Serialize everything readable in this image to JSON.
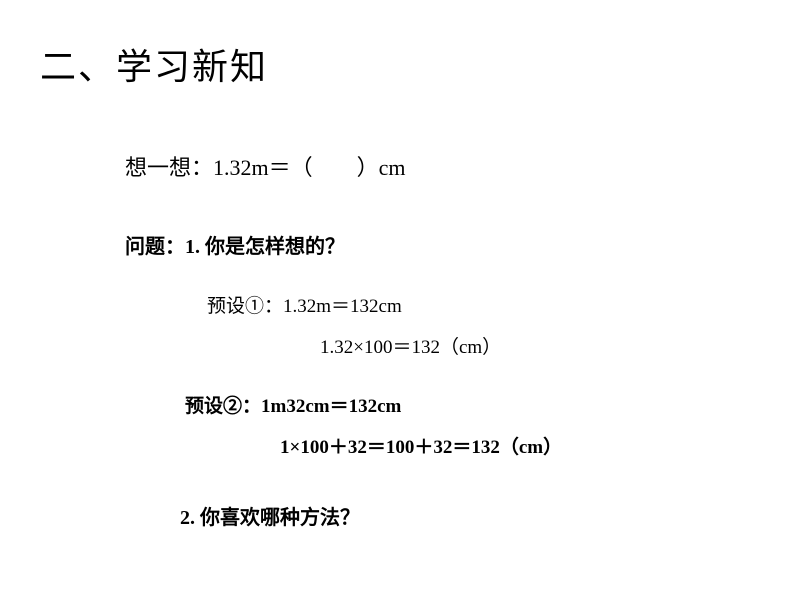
{
  "title": "二、学习新知",
  "content": {
    "think": "想一想：1.32m＝（　　）cm",
    "question1": "问题：1. 你是怎样想的？",
    "preset1_label": "预设①：1.32m＝132cm",
    "preset1_calc": "1.32×100＝132（cm）",
    "preset2_label": "预设②：1m32cm＝132cm",
    "preset2_calc": "1×100＋32＝100＋32＝132（cm）",
    "question2": "2. 你喜欢哪种方法？"
  },
  "styling": {
    "background_color": "#ffffff",
    "text_color": "#000000",
    "title_fontsize": 36,
    "body_fontsize_large": 22,
    "body_fontsize_medium": 20,
    "body_fontsize_small": 19,
    "font_family": "SimSun"
  }
}
